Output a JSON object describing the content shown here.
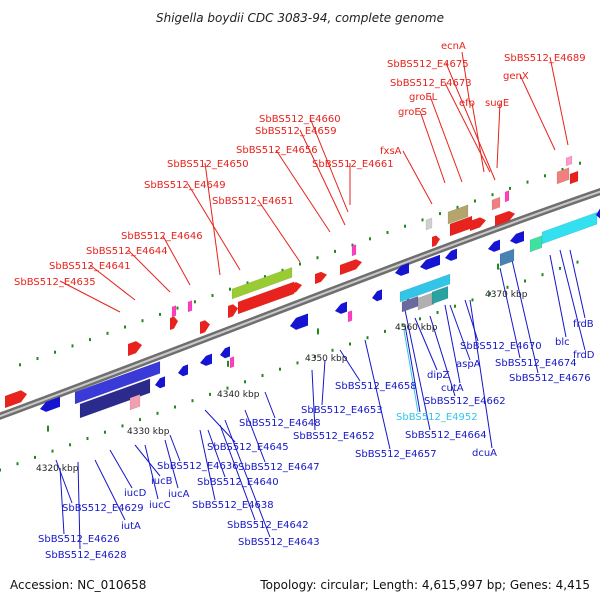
{
  "title": "Shigella boydii CDC 3083-94, complete genome",
  "footer": {
    "accession": "Accession: NC_010658",
    "summary": "Topology: circular; Length: 4,615,997 bp; Genes: 4,415"
  },
  "colors": {
    "forward_label": "#e8221c",
    "reverse_label": "#1616c8",
    "highlight_label": "#33c5e8",
    "backbone": "#8c8c8c"
  },
  "ticks": [
    "4320 kbp",
    "4330 kbp",
    "4340 kbp",
    "4350 kbp",
    "4360 kbp",
    "4370 kbp"
  ],
  "top_labels": [
    "SbBS512_E4635",
    "SbBS512_E4641",
    "SbBS512_E4644",
    "SbBS512_E4646",
    "SbBS512_E4649",
    "SbBS512_E4650",
    "SbBS512_E4651",
    "SbBS512_E4656",
    "SbBS512_E4659",
    "SbBS512_E4660",
    "SbBS512_E4661",
    "fxsA",
    "groES",
    "groEL",
    "SbBS512_E4673",
    "SbBS512_E4675",
    "ecnA",
    "efp",
    "sugE",
    "genX",
    "SbBS512_E4689"
  ],
  "bottom_labels": [
    "SbBS512_E4629",
    "SbBS512_E4626",
    "SbBS512_E4628",
    "iutA",
    "iucD",
    "iucB",
    "iucC",
    "iucA",
    "SbBS512_E4636",
    "SbBS512_E4645",
    "SbBS512_E4640",
    "SbBS512_E4638",
    "SbBS512_E4642",
    "SbBS512_E4643",
    "SbBS512_E4647",
    "SbBS512_E4648",
    "SbBS512_E4652",
    "SbBS512_E4653",
    "SbBS512_E4658",
    "SbBS512_E4657",
    "SbBS512_E4952",
    "SbBS512_E4664",
    "SbBS512_E4662",
    "dipZ",
    "cutA",
    "aspA",
    "dcuA",
    "SbBS512_E4670",
    "SbBS512_E4674",
    "SbBS512_E4676",
    "blc",
    "frdD",
    "frdB"
  ]
}
